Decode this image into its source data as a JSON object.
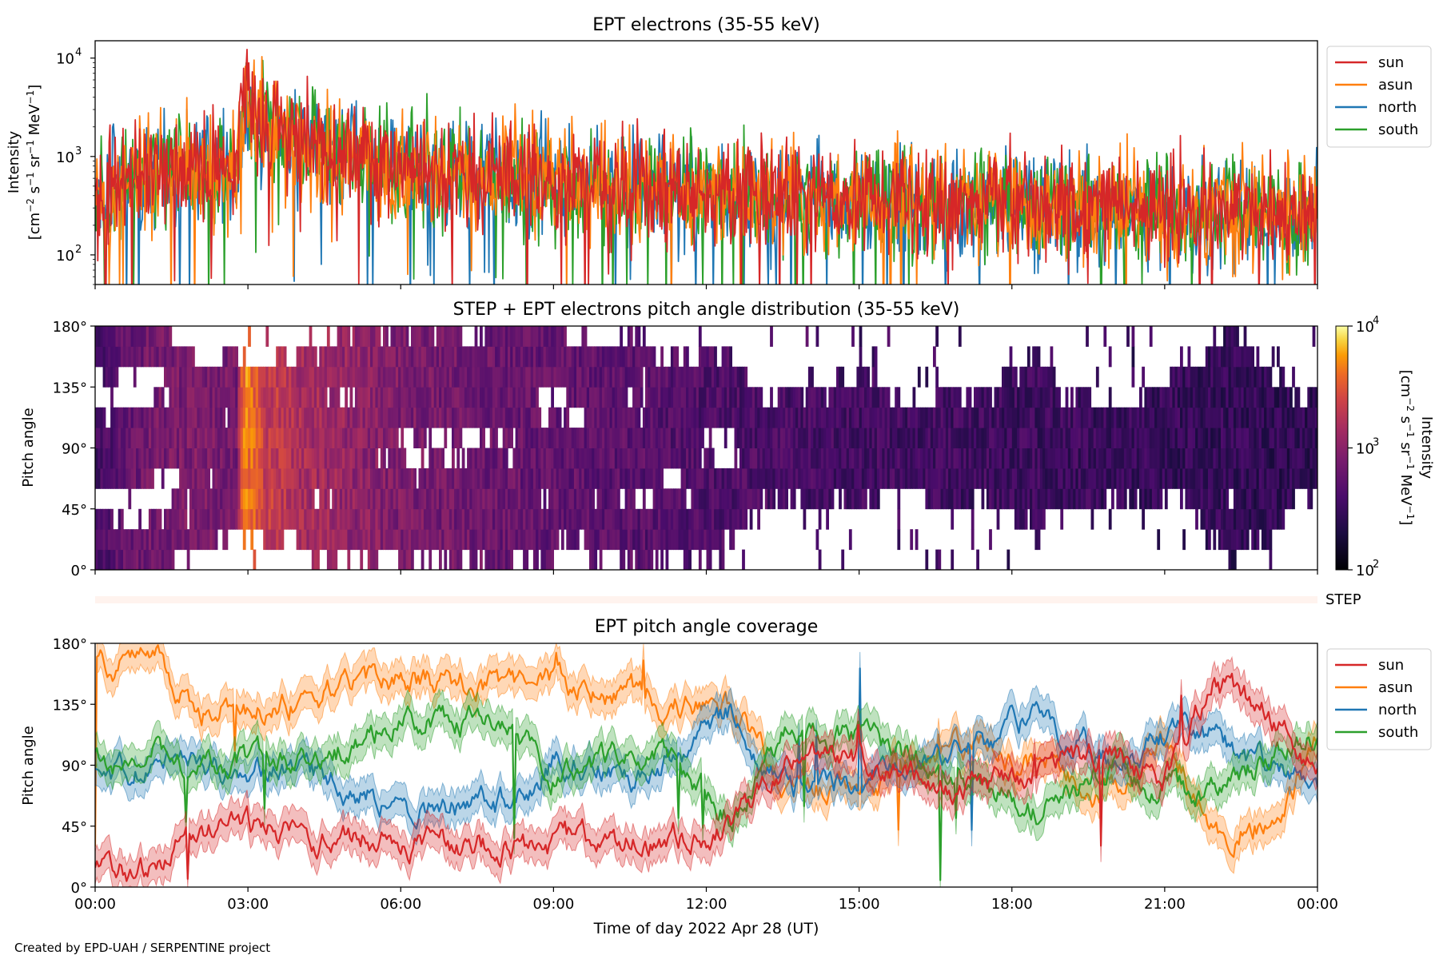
{
  "chart_data": [
    {
      "type": "line",
      "title": "EPT electrons (35-55 keV)",
      "ylabel_line1": "Intensity",
      "ylabel_line2_parts": [
        "[cm",
        "−2",
        " s",
        "−1",
        " sr",
        "−1",
        " MeV",
        "−1",
        "]"
      ],
      "y_scale": "log",
      "ylim": [
        50,
        15000
      ],
      "y_tick_labels": [
        "10",
        "10",
        "10"
      ],
      "y_tick_exponents": [
        "2",
        "3",
        "4"
      ],
      "y_tick_values": [
        100,
        1000,
        10000
      ],
      "x_range_hours": [
        0,
        24
      ],
      "legend": {
        "position": "upper-right-outside"
      },
      "series": [
        {
          "name": "sun",
          "color": "#d62728",
          "profile": [
            [
              0,
              350
            ],
            [
              1,
              700
            ],
            [
              2,
              820
            ],
            [
              2.8,
              720
            ],
            [
              2.95,
              4800
            ],
            [
              3.3,
              2300
            ],
            [
              4,
              1500
            ],
            [
              5,
              1100
            ],
            [
              6,
              820
            ],
            [
              7,
              720
            ],
            [
              8,
              620
            ],
            [
              9,
              580
            ],
            [
              12,
              430
            ],
            [
              15,
              360
            ],
            [
              18,
              330
            ],
            [
              21,
              300
            ],
            [
              24,
              260
            ]
          ]
        },
        {
          "name": "asun",
          "color": "#ff7f0e",
          "profile": [
            [
              0,
              320
            ],
            [
              1,
              650
            ],
            [
              2,
              800
            ],
            [
              2.8,
              700
            ],
            [
              2.95,
              5200
            ],
            [
              3.3,
              2000
            ],
            [
              4,
              1300
            ],
            [
              5,
              1000
            ],
            [
              6,
              780
            ],
            [
              7,
              700
            ],
            [
              8,
              600
            ],
            [
              9,
              560
            ],
            [
              12,
              420
            ],
            [
              15,
              350
            ],
            [
              18,
              320
            ],
            [
              21,
              290
            ],
            [
              24,
              250
            ]
          ]
        },
        {
          "name": "north",
          "color": "#1f77b4",
          "profile": [
            [
              0,
              300
            ],
            [
              1,
              620
            ],
            [
              2,
              780
            ],
            [
              2.8,
              680
            ],
            [
              2.95,
              3000
            ],
            [
              3.3,
              1800
            ],
            [
              4,
              1300
            ],
            [
              5,
              950
            ],
            [
              6,
              760
            ],
            [
              7,
              680
            ],
            [
              8,
              580
            ],
            [
              9,
              540
            ],
            [
              12,
              400
            ],
            [
              15,
              330
            ],
            [
              18,
              300
            ],
            [
              21,
              270
            ],
            [
              24,
              230
            ]
          ]
        },
        {
          "name": "south",
          "color": "#2ca02c",
          "profile": [
            [
              0,
              310
            ],
            [
              1,
              640
            ],
            [
              2,
              790
            ],
            [
              2.8,
              690
            ],
            [
              2.95,
              3200
            ],
            [
              3.3,
              1900
            ],
            [
              4,
              1350
            ],
            [
              5,
              980
            ],
            [
              6,
              770
            ],
            [
              7,
              690
            ],
            [
              8,
              590
            ],
            [
              9,
              550
            ],
            [
              12,
              410
            ],
            [
              15,
              340
            ],
            [
              18,
              310
            ],
            [
              21,
              280
            ],
            [
              24,
              240
            ]
          ]
        }
      ]
    },
    {
      "type": "heatmap",
      "title": "STEP + EPT electrons pitch angle distribution (35-55 keV)",
      "ylabel": "Pitch angle",
      "y_tick_labels": [
        "0°",
        "45°",
        "90°",
        "135°",
        "180°"
      ],
      "y_tick_values": [
        0,
        45,
        90,
        135,
        180
      ],
      "ylim": [
        0,
        180
      ],
      "x_range_hours": [
        0,
        24
      ],
      "colorbar": {
        "label_line1": "Intensity",
        "label_line2_parts": [
          "[cm",
          "−2",
          " s",
          "−1",
          " sr",
          "−1",
          " MeV",
          "−1",
          "]"
        ],
        "scale": "log",
        "range": [
          100,
          10000
        ],
        "tick_labels": [
          "10",
          "10",
          "10"
        ],
        "tick_exponents": [
          "2",
          "3",
          "4"
        ],
        "tick_values": [
          100,
          1000,
          10000
        ],
        "colormap": "inferno"
      }
    },
    {
      "type": "heatmap",
      "label": "STEP",
      "x_range_hours": [
        0,
        24
      ],
      "color": "#fff3ee"
    },
    {
      "type": "line",
      "title": "EPT pitch angle coverage",
      "ylabel": "Pitch angle",
      "xlabel": "Time of day 2022 Apr 28 (UT)",
      "x_tick_labels": [
        "00:00",
        "03:00",
        "06:00",
        "09:00",
        "12:00",
        "15:00",
        "18:00",
        "21:00",
        "00:00"
      ],
      "x_tick_values": [
        0,
        3,
        6,
        9,
        12,
        15,
        18,
        21,
        24
      ],
      "y_tick_labels": [
        "0°",
        "45°",
        "90°",
        "135°",
        "180°"
      ],
      "y_tick_values": [
        0,
        45,
        90,
        135,
        180
      ],
      "ylim": [
        0,
        180
      ],
      "legend": {
        "position": "upper-right-outside"
      },
      "series": [
        {
          "name": "sun",
          "color": "#d62728",
          "profile": [
            [
              0,
              15
            ],
            [
              1.3,
              15
            ],
            [
              2,
              45
            ],
            [
              3,
              40
            ],
            [
              4,
              40
            ],
            [
              6,
              35
            ],
            [
              8,
              30
            ],
            [
              9,
              30
            ],
            [
              11,
              35
            ],
            [
              12.5,
              45
            ],
            [
              13.5,
              90
            ],
            [
              15,
              95
            ],
            [
              17,
              70
            ],
            [
              18.5,
              90
            ],
            [
              20,
              100
            ],
            [
              21,
              80
            ],
            [
              22,
              150
            ],
            [
              23,
              130
            ],
            [
              24,
              80
            ]
          ]
        },
        {
          "name": "asun",
          "color": "#ff7f0e",
          "profile": [
            [
              0,
              165
            ],
            [
              1.3,
              165
            ],
            [
              2,
              130
            ],
            [
              3,
              135
            ],
            [
              4,
              140
            ],
            [
              6,
              150
            ],
            [
              8,
              150
            ],
            [
              9,
              155
            ],
            [
              11,
              140
            ],
            [
              12.5,
              130
            ],
            [
              13.5,
              80
            ],
            [
              15,
              70
            ],
            [
              17,
              110
            ],
            [
              18.5,
              90
            ],
            [
              20,
              70
            ],
            [
              21,
              110
            ],
            [
              22,
              40
            ],
            [
              23,
              50
            ],
            [
              24,
              100
            ]
          ]
        },
        {
          "name": "north",
          "color": "#1f77b4",
          "profile": [
            [
              0,
              85
            ],
            [
              1.3,
              90
            ],
            [
              2,
              90
            ],
            [
              3,
              85
            ],
            [
              4,
              90
            ],
            [
              6,
              55
            ],
            [
              8,
              60
            ],
            [
              9,
              95
            ],
            [
              11,
              80
            ],
            [
              12.5,
              130
            ],
            [
              13.5,
              70
            ],
            [
              15,
              80
            ],
            [
              17,
              95
            ],
            [
              18.5,
              125
            ],
            [
              20,
              90
            ],
            [
              21,
              110
            ],
            [
              22,
              110
            ],
            [
              23,
              90
            ],
            [
              24,
              65
            ]
          ]
        },
        {
          "name": "south",
          "color": "#2ca02c",
          "profile": [
            [
              0,
              95
            ],
            [
              1.3,
              100
            ],
            [
              2,
              90
            ],
            [
              3,
              95
            ],
            [
              4,
              90
            ],
            [
              6,
              125
            ],
            [
              8,
              120
            ],
            [
              9,
              85
            ],
            [
              11,
              100
            ],
            [
              12.5,
              50
            ],
            [
              13.5,
              110
            ],
            [
              15,
              110
            ],
            [
              17,
              85
            ],
            [
              18.5,
              55
            ],
            [
              20,
              90
            ],
            [
              21,
              70
            ],
            [
              22,
              70
            ],
            [
              23,
              90
            ],
            [
              24,
              115
            ]
          ]
        }
      ]
    }
  ],
  "footer": "Created by EPD-UAH / SERPENTINE project"
}
